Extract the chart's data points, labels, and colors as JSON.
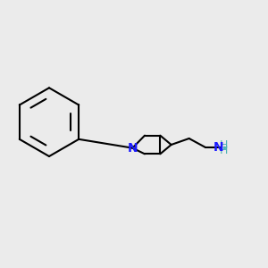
{
  "bg_color": "#ebebeb",
  "bond_color": "#000000",
  "N_color": "#1a1aff",
  "NH2_N_color": "#1a1aff",
  "NH2_H_color": "#4db3b3",
  "bond_width": 1.5,
  "figsize": [
    3.0,
    3.0
  ],
  "dpi": 100,
  "xlim": [
    0.05,
    0.95
  ],
  "ylim": [
    0.2,
    0.85
  ]
}
